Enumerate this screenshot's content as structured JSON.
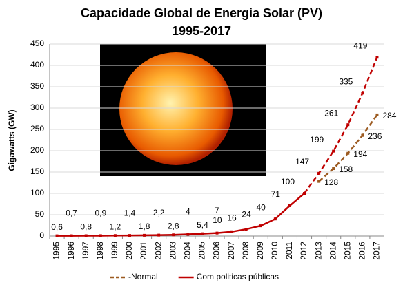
{
  "chart_data": {
    "type": "line",
    "title": "Capacidade Global de Energia Solar (PV)",
    "subtitle": "1995-2017",
    "y_label": "Gigawatts (GW)",
    "categories": [
      "1995",
      "1996",
      "1997",
      "1998",
      "1999",
      "2000",
      "2001",
      "2002",
      "2003",
      "2004",
      "2005",
      "2006",
      "2007",
      "2008",
      "2009",
      "2010",
      "2011",
      "2012",
      "2013",
      "2014",
      "2015",
      "2016",
      "2017"
    ],
    "ylim": [
      0,
      450
    ],
    "yticks": [
      0,
      50,
      100,
      150,
      200,
      250,
      300,
      350,
      400,
      450
    ],
    "grid": true,
    "legend": "bottom",
    "series": [
      {
        "name": "-Normal",
        "color": "#9c5a20",
        "dashed": true,
        "values": [
          null,
          null,
          null,
          null,
          null,
          null,
          null,
          null,
          null,
          null,
          null,
          null,
          null,
          null,
          null,
          null,
          null,
          null,
          128,
          158,
          194,
          236,
          284
        ]
      },
      {
        "name": "Com politicas públicas",
        "color": "#c00000",
        "dashed_after": "2012",
        "values": [
          0.6,
          0.7,
          0.8,
          0.9,
          1.2,
          1.4,
          1.8,
          2.2,
          2.8,
          4,
          5.4,
          7,
          10,
          16,
          24,
          40,
          71,
          100,
          147,
          199,
          261,
          335,
          419
        ],
        "value_labels": [
          "0,6",
          "0,7",
          "0,8",
          "0,9",
          "1,2",
          "1,4",
          "1,8",
          "2,2",
          "2,8",
          "4",
          "5,4",
          "7",
          "10",
          "16",
          "24",
          "40",
          "71",
          "100",
          "147",
          "199",
          "261",
          "335",
          "419"
        ]
      }
    ]
  }
}
